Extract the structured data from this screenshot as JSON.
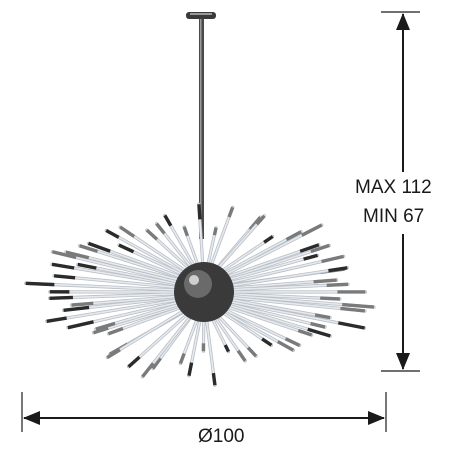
{
  "dimensions": {
    "height_max": "MAX 112",
    "height_min": "MIN 67",
    "width": "Ø100"
  },
  "colors": {
    "line": "#1a1a1a",
    "chrome_dark": "#2b2b2b",
    "chrome_mid": "#7a7a7a",
    "glass": "#e6eaee",
    "glass_edge": "#b8bfc6"
  }
}
